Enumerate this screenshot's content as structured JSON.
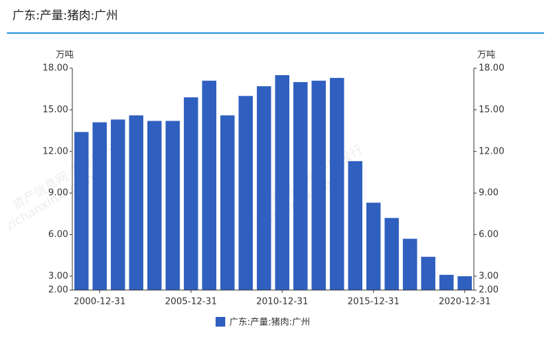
{
  "chart_data": {
    "type": "bar",
    "title": "广东:产量:猪肉:广州",
    "y_unit": "万吨",
    "y2_unit": "万吨",
    "watermark": [
      "资产信息网 千际投行",
      "zichanxinxi.com"
    ],
    "categories": [
      null,
      "2000-12-31",
      null,
      null,
      null,
      null,
      "2005-12-31",
      null,
      null,
      null,
      null,
      "2010-12-31",
      null,
      null,
      null,
      null,
      "2015-12-31",
      null,
      null,
      null,
      null,
      "2020-12-31"
    ],
    "series": [
      {
        "name": "广东:产量:猪肉:广州",
        "color": "#2f5fbf",
        "values": [
          13.4,
          14.1,
          14.3,
          14.6,
          14.2,
          14.2,
          15.9,
          17.1,
          14.6,
          16.0,
          16.7,
          17.5,
          17.0,
          17.1,
          17.3,
          11.3,
          8.3,
          7.2,
          5.7,
          4.4,
          3.1,
          3.0
        ]
      }
    ],
    "ylim": [
      2,
      18
    ],
    "yticks": [
      {
        "value": 2,
        "label": "2.00"
      },
      {
        "value": 3,
        "label": "3.00"
      },
      {
        "value": 6,
        "label": "6.00"
      },
      {
        "value": 9,
        "label": "9.00"
      },
      {
        "value": 12,
        "label": "12.00"
      },
      {
        "value": 15,
        "label": "15.00"
      },
      {
        "value": 18,
        "label": "18.00"
      }
    ],
    "y2lim": [
      2,
      18
    ],
    "y2ticks": [
      {
        "value": 2,
        "label": "2.00"
      },
      {
        "value": 3,
        "label": "3.00"
      },
      {
        "value": 6,
        "label": "6.00"
      },
      {
        "value": 9,
        "label": "9.00"
      },
      {
        "value": 12,
        "label": "12.00"
      },
      {
        "value": 15,
        "label": "15.00"
      },
      {
        "value": 18,
        "label": "18.00"
      }
    ]
  }
}
